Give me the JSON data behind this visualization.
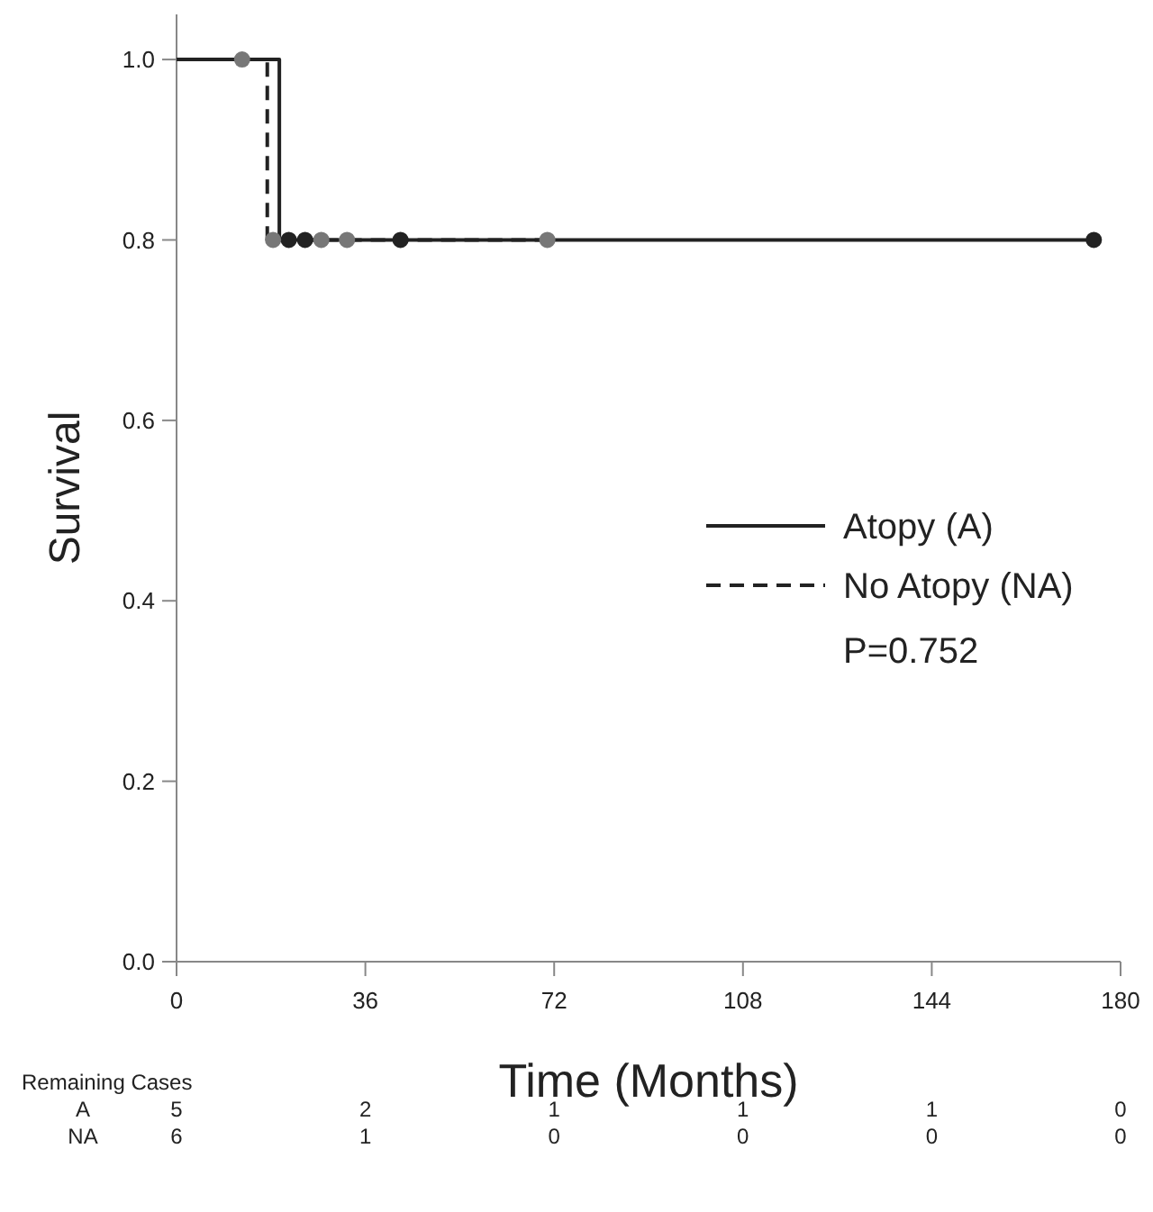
{
  "chart_data": {
    "type": "step",
    "xlabel": "Time (Months)",
    "ylabel": "Survival",
    "xlim": [
      0,
      180
    ],
    "xticks": [
      0,
      36,
      72,
      108,
      144,
      180
    ],
    "ylim": [
      0,
      1.05
    ],
    "yticks": [
      {
        "value": 0,
        "label": "0.0"
      },
      {
        "value": 0.2,
        "label": "0.2"
      },
      {
        "value": 0.4,
        "label": "0.4"
      },
      {
        "value": 0.6,
        "label": "0.6"
      },
      {
        "value": 0.8,
        "label": "0.8"
      },
      {
        "value": 1,
        "label": "1.0"
      }
    ],
    "grid": false,
    "legend": "right",
    "marker": "none",
    "series": [
      {
        "name": "Atopy (A)",
        "color": "#222222",
        "line_style": "solid",
        "x": [
          0,
          19.6,
          174.9
        ],
        "values": [
          1,
          0.8,
          0.8
        ]
      },
      {
        "name": "No Atopy (NA)",
        "color": "#222222",
        "line_style": "dashed",
        "x": [
          0,
          17.3,
          70.7
        ],
        "values": [
          1,
          0.8,
          0.8
        ]
      },
      {
        "type": "scatter",
        "color": "#222222",
        "marker": "circle",
        "x": [
          21.4,
          24.5,
          42.7,
          174.9
        ],
        "values": [
          0.8,
          0.8,
          0.8,
          0.8
        ]
      },
      {
        "type": "scatter",
        "color": "#777777",
        "marker": "circle",
        "x": [
          12.5,
          18.4,
          27.6,
          32.5,
          70.7
        ],
        "values": [
          1,
          0.8,
          0.8,
          0.8,
          0.8
        ]
      }
    ],
    "annotations": [
      "P=0.752",
      "Remaining Cases",
      "A",
      "5",
      "2",
      "1",
      "1",
      "1",
      "0",
      "NA",
      "6",
      "1",
      "0",
      "0",
      "0",
      "0"
    ]
  }
}
